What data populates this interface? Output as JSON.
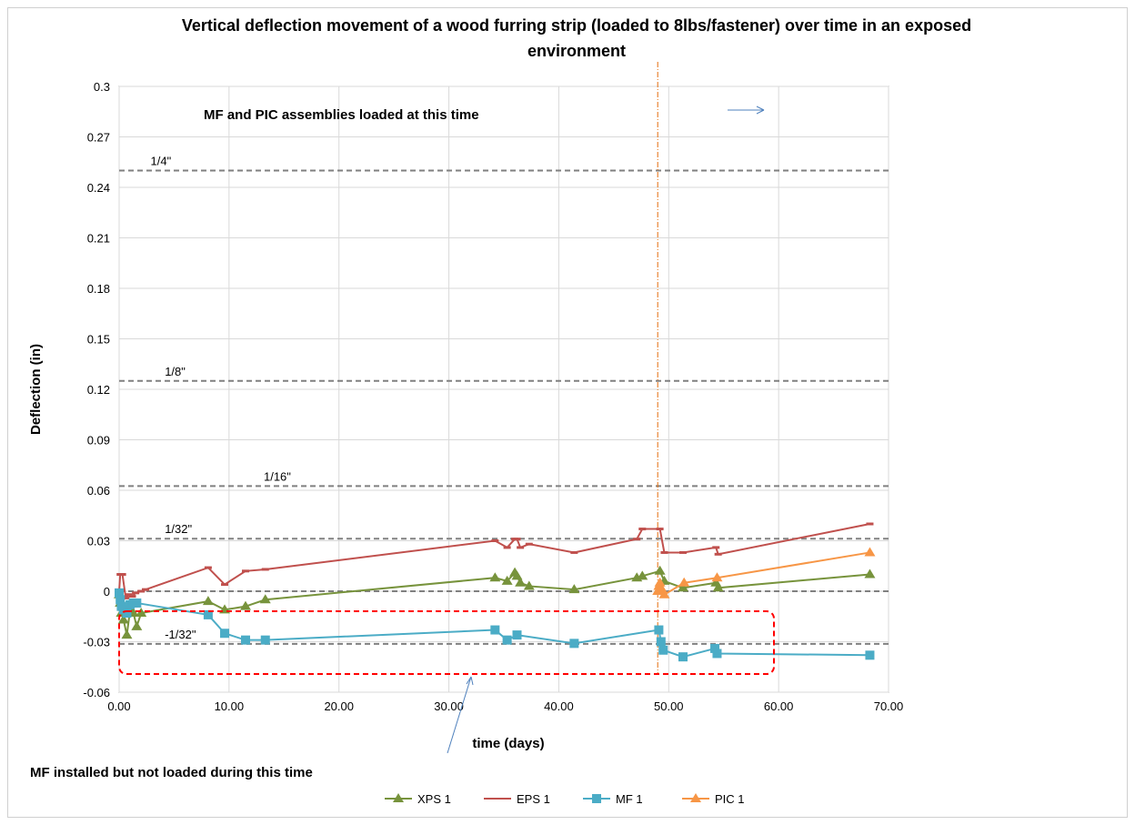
{
  "chart_data": {
    "type": "line",
    "title_line1": "Vertical deflection movement of a wood furring strip (loaded to 8lbs/fastener)  over time in an exposed",
    "title_line2": "environment",
    "xlabel": "time (days)",
    "ylabel": "Deflection (in)",
    "xlim": [
      0,
      70
    ],
    "ylim": [
      -0.06,
      0.3
    ],
    "x_ticks": [
      0,
      10,
      20,
      30,
      40,
      50,
      60,
      70
    ],
    "x_tick_labels": [
      "0.00",
      "10.00",
      "20.00",
      "30.00",
      "40.00",
      "50.00",
      "60.00",
      "70.00"
    ],
    "y_ticks": [
      -0.06,
      -0.03,
      0,
      0.03,
      0.06,
      0.09,
      0.12,
      0.15,
      0.18,
      0.21,
      0.24,
      0.27,
      0.3
    ],
    "y_tick_labels": [
      "-0.06",
      "-0.03",
      "0",
      "0.03",
      "0.06",
      "0.09",
      "0.12",
      "0.15",
      "0.18",
      "0.21",
      "0.24",
      "0.27",
      "0.3"
    ],
    "grid": true,
    "legend_position": "bottom",
    "reference_lines": [
      {
        "label": "1/4\"",
        "y": 0.25,
        "label_x": 1.2
      },
      {
        "label": "1/8\"",
        "y": 0.125,
        "label_x": 2.5
      },
      {
        "label": "1/16\"",
        "y": 0.0625,
        "label_x": 11.5
      },
      {
        "label": "1/32\"",
        "y": 0.03125,
        "label_x": 2.5
      },
      {
        "label": "",
        "y": 0,
        "label_x": 0
      },
      {
        "label": "-1/32\"",
        "y": -0.03125,
        "label_x": 2.5
      }
    ],
    "load_time_line": {
      "x": 49.0,
      "color": "#E46C0A"
    },
    "annotations": {
      "loaded_text": "MF and PIC assemblies loaded at this time",
      "not_loaded_text": "MF installed but not loaded during this time"
    },
    "series": [
      {
        "name": "XPS 1",
        "color": "#77933C",
        "marker": "triangle",
        "x": [
          0.0,
          0.1,
          0.2,
          0.4,
          0.7,
          1.0,
          1.3,
          1.6,
          2.0,
          8.1,
          9.6,
          11.5,
          13.3,
          34.2,
          35.3,
          36.0,
          36.2,
          36.5,
          37.3,
          41.4,
          47.1,
          47.6,
          49.2,
          49.6,
          51.3,
          54.3,
          54.5,
          68.3
        ],
        "y": [
          -0.002,
          -0.007,
          -0.013,
          -0.017,
          -0.026,
          -0.011,
          -0.013,
          -0.021,
          -0.013,
          -0.006,
          -0.011,
          -0.009,
          -0.005,
          0.008,
          0.006,
          0.011,
          0.009,
          0.005,
          0.003,
          0.001,
          0.008,
          0.009,
          0.012,
          0.006,
          0.002,
          0.005,
          0.002,
          0.01
        ]
      },
      {
        "name": "EPS 1",
        "color": "#C0504D",
        "marker": "dash",
        "x": [
          0.0,
          0.1,
          0.3,
          0.6,
          0.9,
          1.2,
          1.5,
          2.0,
          2.4,
          8.1,
          9.6,
          11.5,
          13.3,
          34.2,
          35.3,
          36.0,
          36.2,
          36.5,
          37.3,
          41.4,
          47.1,
          47.6,
          49.2,
          49.6,
          51.3,
          54.3,
          54.5,
          68.3
        ],
        "y": [
          0.0,
          0.01,
          0.01,
          -0.004,
          -0.002,
          -0.003,
          -0.001,
          0.0,
          0.001,
          0.014,
          0.004,
          0.012,
          0.013,
          0.03,
          0.026,
          0.031,
          0.031,
          0.026,
          0.028,
          0.023,
          0.031,
          0.037,
          0.037,
          0.023,
          0.023,
          0.026,
          0.022,
          0.04
        ]
      },
      {
        "name": "MF 1",
        "color": "#4BACC6",
        "marker": "square",
        "x": [
          0.0,
          0.1,
          0.2,
          0.4,
          0.7,
          1.0,
          1.3,
          1.6,
          8.1,
          9.6,
          11.5,
          13.3,
          34.2,
          35.3,
          36.2,
          41.4,
          49.1,
          49.3,
          49.5,
          51.3,
          54.2,
          54.4,
          68.3
        ],
        "y": [
          -0.001,
          -0.005,
          -0.009,
          -0.011,
          -0.013,
          -0.008,
          -0.007,
          -0.007,
          -0.014,
          -0.025,
          -0.029,
          -0.029,
          -0.023,
          -0.029,
          -0.026,
          -0.031,
          -0.023,
          -0.03,
          -0.035,
          -0.039,
          -0.034,
          -0.037,
          -0.038
        ]
      },
      {
        "name": "PIC 1",
        "color": "#F79646",
        "marker": "triangle",
        "x": [
          49.0,
          49.1,
          49.2,
          49.4,
          49.6,
          51.4,
          54.4,
          68.3
        ],
        "y": [
          0.0,
          0.003,
          0.005,
          0.001,
          -0.002,
          0.005,
          0.008,
          0.023
        ]
      }
    ]
  }
}
